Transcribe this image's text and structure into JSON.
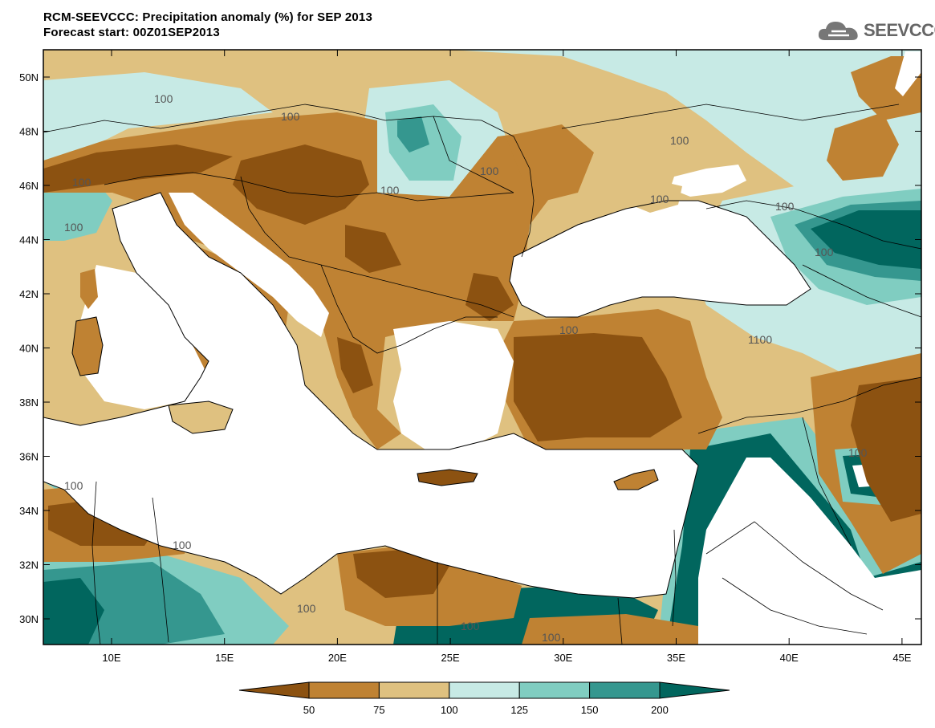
{
  "header": {
    "title_line1": "RCM-SEEVCCC: Precipitation anomaly (%) for SEP 2013",
    "title_line2": "Forecast start: 00Z01SEP2013",
    "logo_text": "SEEVCCC",
    "logo_icon": "cloud-icon"
  },
  "axes": {
    "lat_labels": [
      "50N",
      "48N",
      "46N",
      "44N",
      "42N",
      "40N",
      "38N",
      "36N",
      "34N",
      "32N",
      "30N"
    ],
    "lon_labels": [
      "10E",
      "15E",
      "20E",
      "25E",
      "30E",
      "35E",
      "40E",
      "45E"
    ]
  },
  "contour_labels": [
    "100",
    "100",
    "100",
    "100",
    "100",
    "100",
    "100",
    "100",
    "100",
    "100",
    "100",
    "100",
    "100",
    "100",
    "100",
    "1100",
    "100",
    "100",
    "100",
    "100",
    "100"
  ],
  "legend": {
    "labels": [
      "50",
      "75",
      "100",
      "125",
      "150",
      "200"
    ],
    "colors": [
      "#8c5211",
      "#bf8233",
      "#dfc180",
      "#c7eae5",
      "#80cdc1",
      "#35978f",
      "#01665e"
    ]
  },
  "colors": {
    "sea": "#ffffff",
    "border": "#000000",
    "contour": "#999999"
  }
}
